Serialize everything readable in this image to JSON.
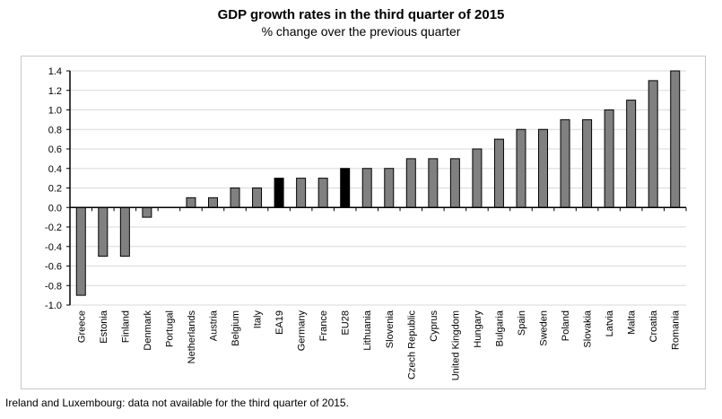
{
  "chart_data": {
    "type": "bar",
    "title": "GDP growth rates in the third quarter of 2015",
    "subtitle": "% change over the previous quarter",
    "categories": [
      "Greece",
      "Estonia",
      "Finland",
      "Denmark",
      "Portugal",
      "Netherlands",
      "Austria",
      "Belgium",
      "Italy",
      "EA19",
      "Germany",
      "France",
      "EU28",
      "Lithuania",
      "Slovenia",
      "Czech Republic",
      "Cyprus",
      "United Kingdom",
      "Hungary",
      "Bulgaria",
      "Spain",
      "Sweden",
      "Poland",
      "Slovakia",
      "Latvia",
      "Malta",
      "Croatia",
      "Romania"
    ],
    "values": [
      -0.9,
      -0.5,
      -0.5,
      -0.1,
      0.0,
      0.1,
      0.1,
      0.2,
      0.2,
      0.3,
      0.3,
      0.3,
      0.4,
      0.4,
      0.4,
      0.5,
      0.5,
      0.5,
      0.6,
      0.7,
      0.8,
      0.8,
      0.9,
      0.9,
      1.0,
      1.1,
      1.3,
      1.4
    ],
    "highlight": [
      "EA19",
      "EU28"
    ],
    "ylim": [
      -1.0,
      1.4
    ],
    "yticks": [
      "-1.0",
      "-0.8",
      "-0.6",
      "-0.4",
      "-0.2",
      "0.0",
      "0.2",
      "0.4",
      "0.6",
      "0.8",
      "1.0",
      "1.2",
      "1.4"
    ],
    "grid": true,
    "xlabel": "",
    "ylabel": "",
    "colors": {
      "bar": "#808080",
      "highlight": "#000000",
      "grid": "#d9d9d9"
    }
  },
  "footnote": "Ireland and Luxembourg: data not available for the third quarter of 2015."
}
